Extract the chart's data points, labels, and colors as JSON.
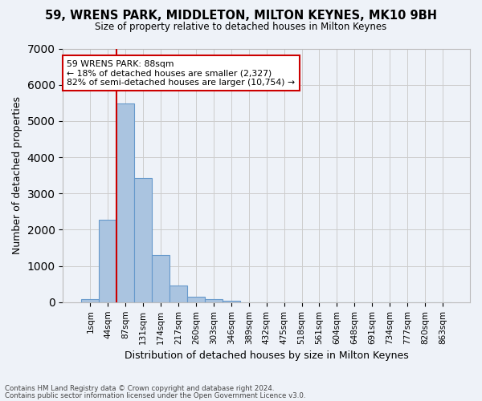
{
  "title": "59, WRENS PARK, MIDDLETON, MILTON KEYNES, MK10 9BH",
  "subtitle": "Size of property relative to detached houses in Milton Keynes",
  "xlabel": "Distribution of detached houses by size in Milton Keynes",
  "ylabel": "Number of detached properties",
  "footer_line1": "Contains HM Land Registry data © Crown copyright and database right 2024.",
  "footer_line2": "Contains public sector information licensed under the Open Government Licence v3.0.",
  "bin_labels": [
    "1sqm",
    "44sqm",
    "87sqm",
    "131sqm",
    "174sqm",
    "217sqm",
    "260sqm",
    "303sqm",
    "346sqm",
    "389sqm",
    "432sqm",
    "475sqm",
    "518sqm",
    "561sqm",
    "604sqm",
    "648sqm",
    "691sqm",
    "734sqm",
    "777sqm",
    "820sqm",
    "863sqm"
  ],
  "bar_values": [
    75,
    2270,
    5480,
    3430,
    1310,
    460,
    155,
    80,
    45,
    0,
    0,
    0,
    0,
    0,
    0,
    0,
    0,
    0,
    0,
    0,
    0
  ],
  "bar_color": "#aac4e0",
  "bar_edge_color": "#6699cc",
  "background_color": "#eef2f8",
  "grid_color": "#cccccc",
  "vline_color": "#cc0000",
  "vline_index": 1.5,
  "annotation_text": "59 WRENS PARK: 88sqm\n← 18% of detached houses are smaller (2,327)\n82% of semi-detached houses are larger (10,754) →",
  "annotation_box_color": "#ffffff",
  "annotation_box_edge": "#cc0000",
  "ylim": [
    0,
    7000
  ],
  "yticks": [
    0,
    1000,
    2000,
    3000,
    4000,
    5000,
    6000,
    7000
  ]
}
